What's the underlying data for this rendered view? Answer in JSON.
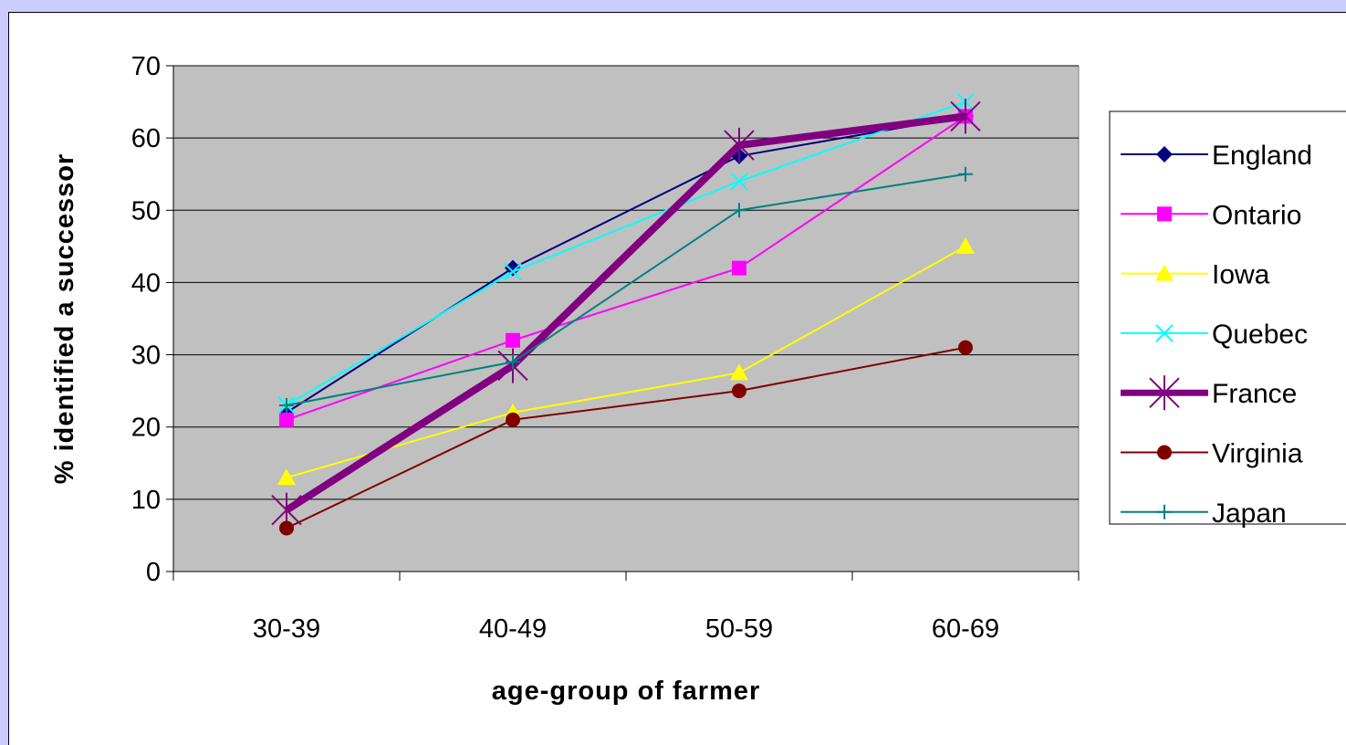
{
  "chart_data": {
    "type": "line",
    "title": "",
    "xlabel": "age-group of farmer",
    "ylabel": "% identified a successor",
    "categories": [
      "30-39",
      "40-49",
      "50-59",
      "60-69"
    ],
    "ylim": [
      0,
      70
    ],
    "yticks": [
      "0",
      "10",
      "20",
      "30",
      "40",
      "50",
      "60",
      "70"
    ],
    "grid": true,
    "legend_position": "right",
    "plot_background": "#c0c0c0",
    "series": [
      {
        "name": "England",
        "color": "#000080",
        "marker": "diamond",
        "values": [
          22,
          42,
          57.5,
          63
        ]
      },
      {
        "name": "Ontario",
        "color": "#ff00ff",
        "marker": "square",
        "values": [
          21,
          32,
          42,
          63
        ]
      },
      {
        "name": "Iowa",
        "color": "#ffff00",
        "marker": "triangle",
        "values": [
          13,
          22,
          27.5,
          45
        ]
      },
      {
        "name": "Quebec",
        "color": "#00ffff",
        "marker": "x",
        "values": [
          23,
          41.5,
          54,
          65
        ]
      },
      {
        "name": "France",
        "color": "#800080",
        "marker": "star",
        "thick": true,
        "values": [
          8.5,
          28.5,
          59,
          63
        ]
      },
      {
        "name": "Virginia",
        "color": "#800000",
        "marker": "circle",
        "values": [
          6,
          21,
          25,
          31
        ]
      },
      {
        "name": "Japan",
        "color": "#008080",
        "marker": "plus",
        "values": [
          23,
          29,
          50,
          55
        ]
      }
    ]
  }
}
